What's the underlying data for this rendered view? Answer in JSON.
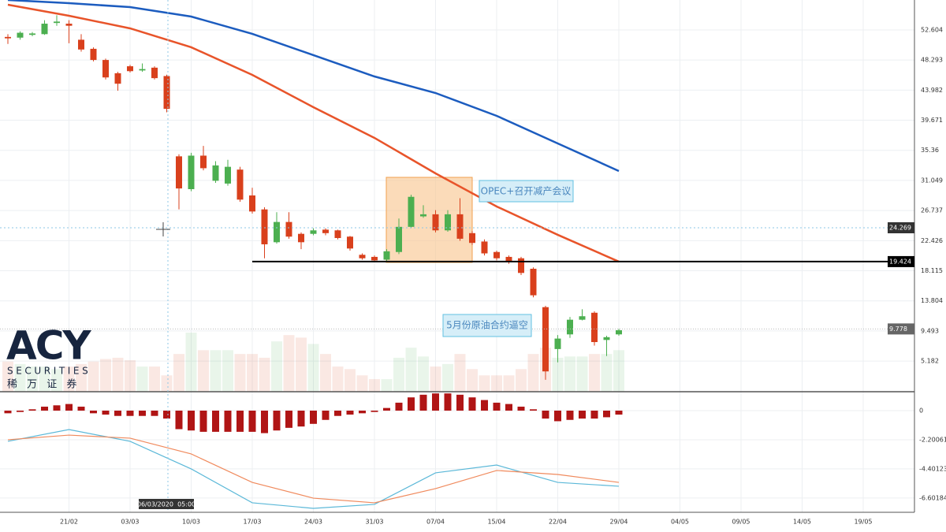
{
  "chart_data": {
    "type": "candlestick",
    "up_color": "#4caf50",
    "down_color": "#d9401c",
    "xtick_labels": [
      "21/02",
      "03/03",
      "10/03",
      "17/03",
      "24/03",
      "31/03",
      "07/04",
      "15/04",
      "22/04",
      "29/04",
      "04/05",
      "09/05",
      "14/05",
      "19/05"
    ],
    "open": [
      51.6,
      51.5,
      51.9,
      52.0,
      53.6,
      53.5,
      51.2,
      49.9,
      48.3,
      46.4,
      47.4,
      46.8,
      47.2,
      46.0,
      34.5,
      29.8,
      34.6,
      31.0,
      30.6,
      32.6,
      28.9,
      26.9,
      22.2,
      25.1,
      23.4,
      23.4,
      24.0,
      23.9,
      23.0,
      20.4,
      20.1,
      19.7,
      20.8,
      24.4,
      25.9,
      26.2,
      23.9,
      26.2,
      23.5,
      22.3,
      20.8,
      20.1,
      19.9,
      18.4,
      12.9,
      6.9,
      9.0,
      11.1,
      12.1,
      8.2,
      9.0
    ],
    "high": [
      52.0,
      52.4,
      52.3,
      54.0,
      54.7,
      54.0,
      52.0,
      50.1,
      48.5,
      46.6,
      47.6,
      47.8,
      47.4,
      46.2,
      34.8,
      35.0,
      36.0,
      33.8,
      34.0,
      33.0,
      30.0,
      27.2,
      26.5,
      26.5,
      23.6,
      24.2,
      24.2,
      24.0,
      23.1,
      20.6,
      20.3,
      21.2,
      25.6,
      29.0,
      27.5,
      26.8,
      26.8,
      28.5,
      23.8,
      22.6,
      21.0,
      20.3,
      20.1,
      18.6,
      13.1,
      8.9,
      11.5,
      12.6,
      12.3,
      8.8,
      9.8
    ],
    "low": [
      50.6,
      51.2,
      51.7,
      51.9,
      53.2,
      50.7,
      49.5,
      48.1,
      45.5,
      43.9,
      46.5,
      46.6,
      45.5,
      40.8,
      26.9,
      29.5,
      32.5,
      30.7,
      30.3,
      28.0,
      26.3,
      19.9,
      22.0,
      22.7,
      21.2,
      23.2,
      23.2,
      22.6,
      21.0,
      19.7,
      19.4,
      19.5,
      20.5,
      24.2,
      25.7,
      23.6,
      23.7,
      22.4,
      21.8,
      20.3,
      19.6,
      19.1,
      17.5,
      14.3,
      2.5,
      5.0,
      8.5,
      11.0,
      7.4,
      5.9,
      8.8
    ],
    "close": [
      51.4,
      52.2,
      52.1,
      53.5,
      53.8,
      53.2,
      49.8,
      48.3,
      45.8,
      44.9,
      46.7,
      47.0,
      45.7,
      41.3,
      29.9,
      34.6,
      32.8,
      33.2,
      33.0,
      28.3,
      26.6,
      21.9,
      25.1,
      23.0,
      22.2,
      23.9,
      23.5,
      22.8,
      21.3,
      19.9,
      19.6,
      20.9,
      24.4,
      28.7,
      26.2,
      23.9,
      26.2,
      22.7,
      22.1,
      20.6,
      19.9,
      19.4,
      17.8,
      14.6,
      3.7,
      8.4,
      11.1,
      11.6,
      7.9,
      8.6,
      9.6
    ],
    "volume": [
      24,
      22,
      20,
      20,
      18,
      20,
      22,
      24,
      26,
      27,
      25,
      20,
      20,
      13,
      30,
      47,
      33,
      33,
      33,
      30,
      30,
      27,
      40,
      45,
      43,
      38,
      30,
      20,
      18,
      13,
      10,
      10,
      27,
      35,
      28,
      20,
      22,
      30,
      18,
      13,
      13,
      13,
      18,
      30,
      35,
      27,
      28,
      28,
      30,
      30,
      33
    ],
    "moving_averages": [
      {
        "color": "#e8542a",
        "x": [
          0,
          5,
          10,
          15,
          20,
          25,
          30,
          35,
          40,
          45,
          50
        ],
        "values": [
          56.21,
          54.63,
          52.83,
          50.12,
          46.17,
          41.54,
          37.14,
          32.06,
          27.32,
          23.26,
          19.42
        ]
      },
      {
        "color": "#1c5cbf",
        "x": [
          0,
          5,
          10,
          15,
          20,
          25,
          30,
          35,
          40,
          45,
          50
        ],
        "values": [
          56.89,
          56.44,
          55.87,
          54.52,
          52.04,
          48.99,
          45.94,
          43.57,
          40.3,
          36.35,
          32.4
        ]
      }
    ],
    "ylim": [
      0.79,
      56.89
    ],
    "yticks": [
      52.604,
      48.293,
      43.982,
      39.671,
      35.36,
      31.049,
      26.737,
      22.426,
      18.115,
      13.804,
      9.493,
      5.182
    ],
    "crosshair_price": 24.269,
    "level_price": 19.424,
    "last_price": 9.778,
    "crosshair_time": "06/03/2020  05:00",
    "annotations": [
      "OPEC+召开减产会议",
      "5月份原油合约逼空"
    ],
    "macd": {
      "ylim": [
        -7.56,
        1.25
      ],
      "yticks": [
        0,
        -2.20061,
        -4.40123,
        -6.60184
      ],
      "histogram_color": "#b01515",
      "histogram": [
        -0.2,
        -0.1,
        0.1,
        0.3,
        0.4,
        0.5,
        0.3,
        -0.2,
        -0.3,
        -0.4,
        -0.4,
        -0.4,
        -0.4,
        -0.6,
        -1.4,
        -1.5,
        -1.6,
        -1.6,
        -1.6,
        -1.6,
        -1.6,
        -1.7,
        -1.5,
        -1.3,
        -1.2,
        -1.0,
        -0.7,
        -0.4,
        -0.3,
        -0.2,
        -0.1,
        0.2,
        0.6,
        1.0,
        1.2,
        1.3,
        1.3,
        1.2,
        1.0,
        0.8,
        0.6,
        0.5,
        0.3,
        0.1,
        -0.6,
        -0.8,
        -0.7,
        -0.6,
        -0.6,
        -0.5,
        -0.3
      ],
      "lines": [
        {
          "color": "#5bb8d8",
          "x": [
            0,
            5,
            10,
            15,
            20,
            25,
            30,
            35,
            40,
            45,
            50
          ],
          "values": [
            -2.32,
            -1.43,
            -2.32,
            -4.4,
            -6.96,
            -7.38,
            -7.08,
            -4.7,
            -4.11,
            -5.42,
            -5.71
          ]
        },
        {
          "color": "#f08a5d",
          "x": [
            0,
            5,
            10,
            15,
            20,
            25,
            30,
            35,
            40,
            45,
            50
          ],
          "values": [
            -2.2,
            -1.85,
            -2.08,
            -3.27,
            -5.42,
            -6.61,
            -6.96,
            -5.89,
            -4.52,
            -4.82,
            -5.42
          ]
        }
      ]
    }
  },
  "logo": {
    "brand": "ACY",
    "sub": "SECURITIES",
    "cn": "稀 万 证 券"
  }
}
